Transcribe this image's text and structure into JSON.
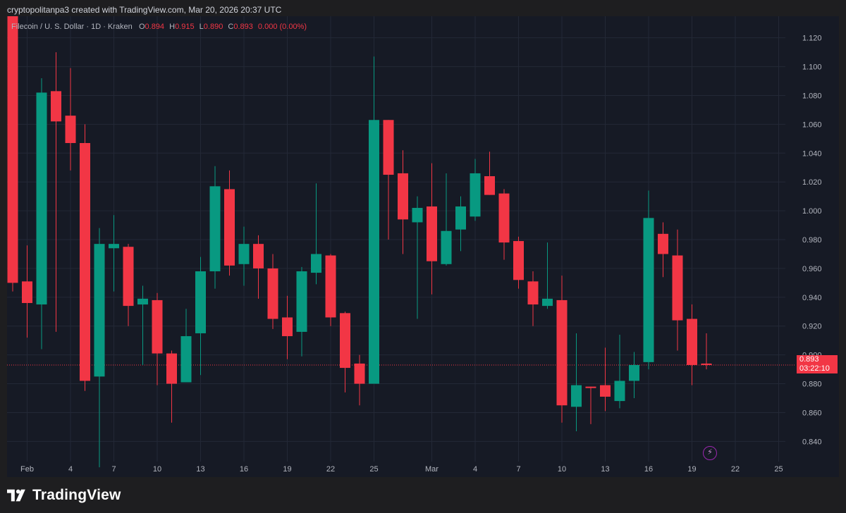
{
  "credit": "cryptopolitanpa3 created with TradingView.com, Mar 20, 2026 20:37 UTC",
  "legend": {
    "symbol": "Filecoin / U. S. Dollar · 1D · Kraken",
    "o_label": "O",
    "o_value": "0.894",
    "h_label": "H",
    "h_value": "0.915",
    "l_label": "L",
    "l_value": "0.890",
    "c_label": "C",
    "c_value": "0.893",
    "change": "0.000 (0.00%)"
  },
  "price_tag": {
    "price": "0.893",
    "countdown": "03:22:10"
  },
  "brand": {
    "name": "TradingView"
  },
  "icons": {
    "alert": "lightning-icon",
    "logo": "tradingview-logo-icon"
  },
  "colors": {
    "up": "#089981",
    "down": "#f23645",
    "background": "#161a25",
    "grid": "#232836",
    "axis_text": "#b2b5be",
    "last_price_line": "#f23645"
  },
  "chart_data": {
    "type": "candlestick",
    "title": "Filecoin / U. S. Dollar · 1D · Kraken",
    "xlabel": "",
    "ylabel": "",
    "ylim": [
      0.826,
      1.135
    ],
    "grid": true,
    "last_price": 0.893,
    "y_ticks": [
      "1.120",
      "1.100",
      "1.080",
      "1.060",
      "1.040",
      "1.020",
      "1.000",
      "0.980",
      "0.960",
      "0.940",
      "0.920",
      "0.900",
      "0.880",
      "0.860",
      "0.840"
    ],
    "x_ticks": [
      {
        "day": 1,
        "label": "Feb"
      },
      {
        "day": 4,
        "label": "4"
      },
      {
        "day": 7,
        "label": "7"
      },
      {
        "day": 10,
        "label": "10"
      },
      {
        "day": 13,
        "label": "13"
      },
      {
        "day": 16,
        "label": "16"
      },
      {
        "day": 19,
        "label": "19"
      },
      {
        "day": 22,
        "label": "22"
      },
      {
        "day": 25,
        "label": "25"
      },
      {
        "day": 29,
        "label": "Mar"
      },
      {
        "day": 32,
        "label": "4"
      },
      {
        "day": 35,
        "label": "7"
      },
      {
        "day": 38,
        "label": "10"
      },
      {
        "day": 41,
        "label": "13"
      },
      {
        "day": 44,
        "label": "16"
      },
      {
        "day": 47,
        "label": "19"
      },
      {
        "day": 50,
        "label": "22"
      },
      {
        "day": 53,
        "label": "25"
      }
    ],
    "candles": [
      {
        "day": 0,
        "o": 1.14,
        "h": 1.14,
        "l": 0.944,
        "c": 0.95
      },
      {
        "day": 1,
        "o": 0.951,
        "h": 0.976,
        "l": 0.912,
        "c": 0.936
      },
      {
        "day": 2,
        "o": 0.935,
        "h": 1.092,
        "l": 0.904,
        "c": 1.082
      },
      {
        "day": 3,
        "o": 1.083,
        "h": 1.11,
        "l": 0.916,
        "c": 1.062
      },
      {
        "day": 4,
        "o": 1.066,
        "h": 1.099,
        "l": 1.028,
        "c": 1.047
      },
      {
        "day": 5,
        "o": 1.047,
        "h": 1.06,
        "l": 0.875,
        "c": 0.882
      },
      {
        "day": 6,
        "o": 0.885,
        "h": 0.988,
        "l": 0.822,
        "c": 0.977
      },
      {
        "day": 7,
        "o": 0.974,
        "h": 0.997,
        "l": 0.944,
        "c": 0.977
      },
      {
        "day": 8,
        "o": 0.975,
        "h": 0.977,
        "l": 0.92,
        "c": 0.934
      },
      {
        "day": 9,
        "o": 0.935,
        "h": 0.948,
        "l": 0.893,
        "c": 0.939
      },
      {
        "day": 10,
        "o": 0.938,
        "h": 0.943,
        "l": 0.879,
        "c": 0.901
      },
      {
        "day": 11,
        "o": 0.901,
        "h": 0.903,
        "l": 0.853,
        "c": 0.88
      },
      {
        "day": 12,
        "o": 0.881,
        "h": 0.932,
        "l": 0.881,
        "c": 0.913
      },
      {
        "day": 13,
        "o": 0.915,
        "h": 0.968,
        "l": 0.886,
        "c": 0.958
      },
      {
        "day": 14,
        "o": 0.958,
        "h": 1.031,
        "l": 0.946,
        "c": 1.017
      },
      {
        "day": 15,
        "o": 1.015,
        "h": 1.028,
        "l": 0.955,
        "c": 0.962
      },
      {
        "day": 16,
        "o": 0.963,
        "h": 0.989,
        "l": 0.948,
        "c": 0.977
      },
      {
        "day": 17,
        "o": 0.977,
        "h": 0.983,
        "l": 0.939,
        "c": 0.96
      },
      {
        "day": 18,
        "o": 0.96,
        "h": 0.97,
        "l": 0.918,
        "c": 0.925
      },
      {
        "day": 19,
        "o": 0.926,
        "h": 0.941,
        "l": 0.897,
        "c": 0.913
      },
      {
        "day": 20,
        "o": 0.916,
        "h": 0.961,
        "l": 0.899,
        "c": 0.958
      },
      {
        "day": 21,
        "o": 0.957,
        "h": 1.019,
        "l": 0.949,
        "c": 0.97
      },
      {
        "day": 22,
        "o": 0.969,
        "h": 0.97,
        "l": 0.92,
        "c": 0.926
      },
      {
        "day": 23,
        "o": 0.929,
        "h": 0.93,
        "l": 0.874,
        "c": 0.891
      },
      {
        "day": 24,
        "o": 0.894,
        "h": 0.9,
        "l": 0.865,
        "c": 0.88
      },
      {
        "day": 25,
        "o": 0.88,
        "h": 1.107,
        "l": 0.88,
        "c": 1.063
      },
      {
        "day": 26,
        "o": 1.063,
        "h": 1.063,
        "l": 0.98,
        "c": 1.025
      },
      {
        "day": 27,
        "o": 1.026,
        "h": 1.042,
        "l": 0.97,
        "c": 0.994
      },
      {
        "day": 28,
        "o": 0.992,
        "h": 1.01,
        "l": 0.925,
        "c": 1.002
      },
      {
        "day": 29,
        "o": 1.003,
        "h": 1.033,
        "l": 0.942,
        "c": 0.965
      },
      {
        "day": 30,
        "o": 0.963,
        "h": 1.026,
        "l": 0.962,
        "c": 0.986
      },
      {
        "day": 31,
        "o": 0.987,
        "h": 1.01,
        "l": 0.972,
        "c": 1.003
      },
      {
        "day": 32,
        "o": 0.996,
        "h": 1.036,
        "l": 0.993,
        "c": 1.026
      },
      {
        "day": 33,
        "o": 1.024,
        "h": 1.041,
        "l": 1.011,
        "c": 1.011
      },
      {
        "day": 34,
        "o": 1.012,
        "h": 1.015,
        "l": 0.966,
        "c": 0.978
      },
      {
        "day": 35,
        "o": 0.979,
        "h": 0.982,
        "l": 0.946,
        "c": 0.952
      },
      {
        "day": 36,
        "o": 0.951,
        "h": 0.958,
        "l": 0.92,
        "c": 0.935
      },
      {
        "day": 37,
        "o": 0.934,
        "h": 0.978,
        "l": 0.932,
        "c": 0.939
      },
      {
        "day": 38,
        "o": 0.938,
        "h": 0.955,
        "l": 0.853,
        "c": 0.865
      },
      {
        "day": 39,
        "o": 0.864,
        "h": 0.915,
        "l": 0.847,
        "c": 0.879
      },
      {
        "day": 40,
        "o": 0.878,
        "h": 0.878,
        "l": 0.852,
        "c": 0.877
      },
      {
        "day": 41,
        "o": 0.879,
        "h": 0.905,
        "l": 0.861,
        "c": 0.871
      },
      {
        "day": 42,
        "o": 0.868,
        "h": 0.914,
        "l": 0.863,
        "c": 0.882
      },
      {
        "day": 43,
        "o": 0.882,
        "h": 0.902,
        "l": 0.87,
        "c": 0.893
      },
      {
        "day": 44,
        "o": 0.895,
        "h": 1.014,
        "l": 0.89,
        "c": 0.995
      },
      {
        "day": 45,
        "o": 0.984,
        "h": 0.992,
        "l": 0.954,
        "c": 0.97
      },
      {
        "day": 46,
        "o": 0.969,
        "h": 0.987,
        "l": 0.903,
        "c": 0.924
      },
      {
        "day": 47,
        "o": 0.925,
        "h": 0.935,
        "l": 0.879,
        "c": 0.893
      },
      {
        "day": 48,
        "o": 0.894,
        "h": 0.915,
        "l": 0.89,
        "c": 0.893
      }
    ]
  }
}
